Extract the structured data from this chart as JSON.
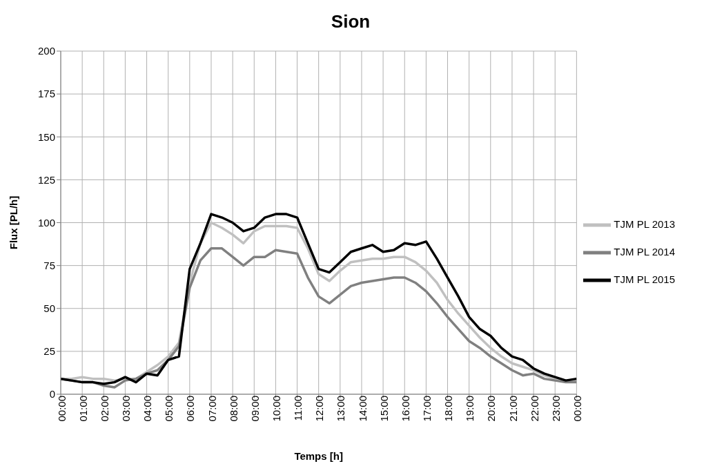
{
  "chart_data": {
    "type": "line",
    "title": "Sion",
    "xlabel": "Temps [h]",
    "ylabel": "Flux [PL/h]",
    "x": [
      0,
      0.5,
      1,
      1.5,
      2,
      2.5,
      3,
      3.5,
      4,
      4.5,
      5,
      5.5,
      6,
      6.5,
      7,
      7.5,
      8,
      8.5,
      9,
      9.5,
      10,
      10.5,
      11,
      11.5,
      12,
      12.5,
      13,
      13.5,
      14,
      14.5,
      15,
      15.5,
      16,
      16.5,
      17,
      17.5,
      18,
      18.5,
      19,
      19.5,
      20,
      20.5,
      21,
      21.5,
      22,
      22.5,
      23,
      23.5,
      24
    ],
    "series": [
      {
        "name": "TJM PL 2013",
        "color": "#c0c0c0",
        "values": [
          9,
          9,
          10,
          9,
          9,
          8,
          9,
          9,
          13,
          17,
          22,
          30,
          65,
          88,
          100,
          97,
          93,
          88,
          95,
          98,
          98,
          98,
          97,
          85,
          70,
          66,
          72,
          77,
          78,
          79,
          79,
          80,
          80,
          77,
          72,
          65,
          55,
          47,
          40,
          33,
          27,
          22,
          18,
          16,
          14,
          11,
          9,
          8,
          8
        ]
      },
      {
        "name": "TJM PL 2014",
        "color": "#808080",
        "values": [
          9,
          8,
          7,
          7,
          5,
          4,
          8,
          9,
          12,
          14,
          20,
          28,
          62,
          78,
          85,
          85,
          80,
          75,
          80,
          80,
          84,
          83,
          82,
          68,
          57,
          53,
          58,
          63,
          65,
          66,
          67,
          68,
          68,
          65,
          60,
          53,
          45,
          38,
          31,
          27,
          22,
          18,
          14,
          11,
          12,
          9,
          8,
          7,
          7
        ]
      },
      {
        "name": "TJM PL 2015",
        "color": "#000000",
        "values": [
          9,
          8,
          7,
          7,
          6,
          7,
          10,
          7,
          12,
          11,
          20,
          22,
          73,
          88,
          105,
          103,
          100,
          95,
          97,
          103,
          105,
          105,
          103,
          88,
          73,
          71,
          77,
          83,
          85,
          87,
          83,
          84,
          88,
          87,
          89,
          79,
          68,
          57,
          45,
          38,
          34,
          27,
          22,
          20,
          15,
          12,
          10,
          8,
          9
        ]
      }
    ],
    "xlim": [
      0,
      24
    ],
    "xticks": [
      {
        "value": 0,
        "label": "00:00"
      },
      {
        "value": 1,
        "label": "01:00"
      },
      {
        "value": 2,
        "label": "02:00"
      },
      {
        "value": 3,
        "label": "03:00"
      },
      {
        "value": 4,
        "label": "04:00"
      },
      {
        "value": 5,
        "label": "05:00"
      },
      {
        "value": 6,
        "label": "06:00"
      },
      {
        "value": 7,
        "label": "07:00"
      },
      {
        "value": 8,
        "label": "08:00"
      },
      {
        "value": 9,
        "label": "09:00"
      },
      {
        "value": 10,
        "label": "10:00"
      },
      {
        "value": 11,
        "label": "11:00"
      },
      {
        "value": 12,
        "label": "12:00"
      },
      {
        "value": 13,
        "label": "13:00"
      },
      {
        "value": 14,
        "label": "14:00"
      },
      {
        "value": 15,
        "label": "15:00"
      },
      {
        "value": 16,
        "label": "16:00"
      },
      {
        "value": 17,
        "label": "17:00"
      },
      {
        "value": 18,
        "label": "18:00"
      },
      {
        "value": 19,
        "label": "19:00"
      },
      {
        "value": 20,
        "label": "20:00"
      },
      {
        "value": 21,
        "label": "21:00"
      },
      {
        "value": 22,
        "label": "22:00"
      },
      {
        "value": 23,
        "label": "23:00"
      },
      {
        "value": 24,
        "label": "00:00"
      }
    ],
    "ylim": [
      0,
      200
    ],
    "yticks": [
      0,
      25,
      50,
      75,
      100,
      125,
      150,
      175,
      200
    ],
    "grid": true,
    "legend": "right",
    "marker": "none",
    "line_style": "solid"
  }
}
